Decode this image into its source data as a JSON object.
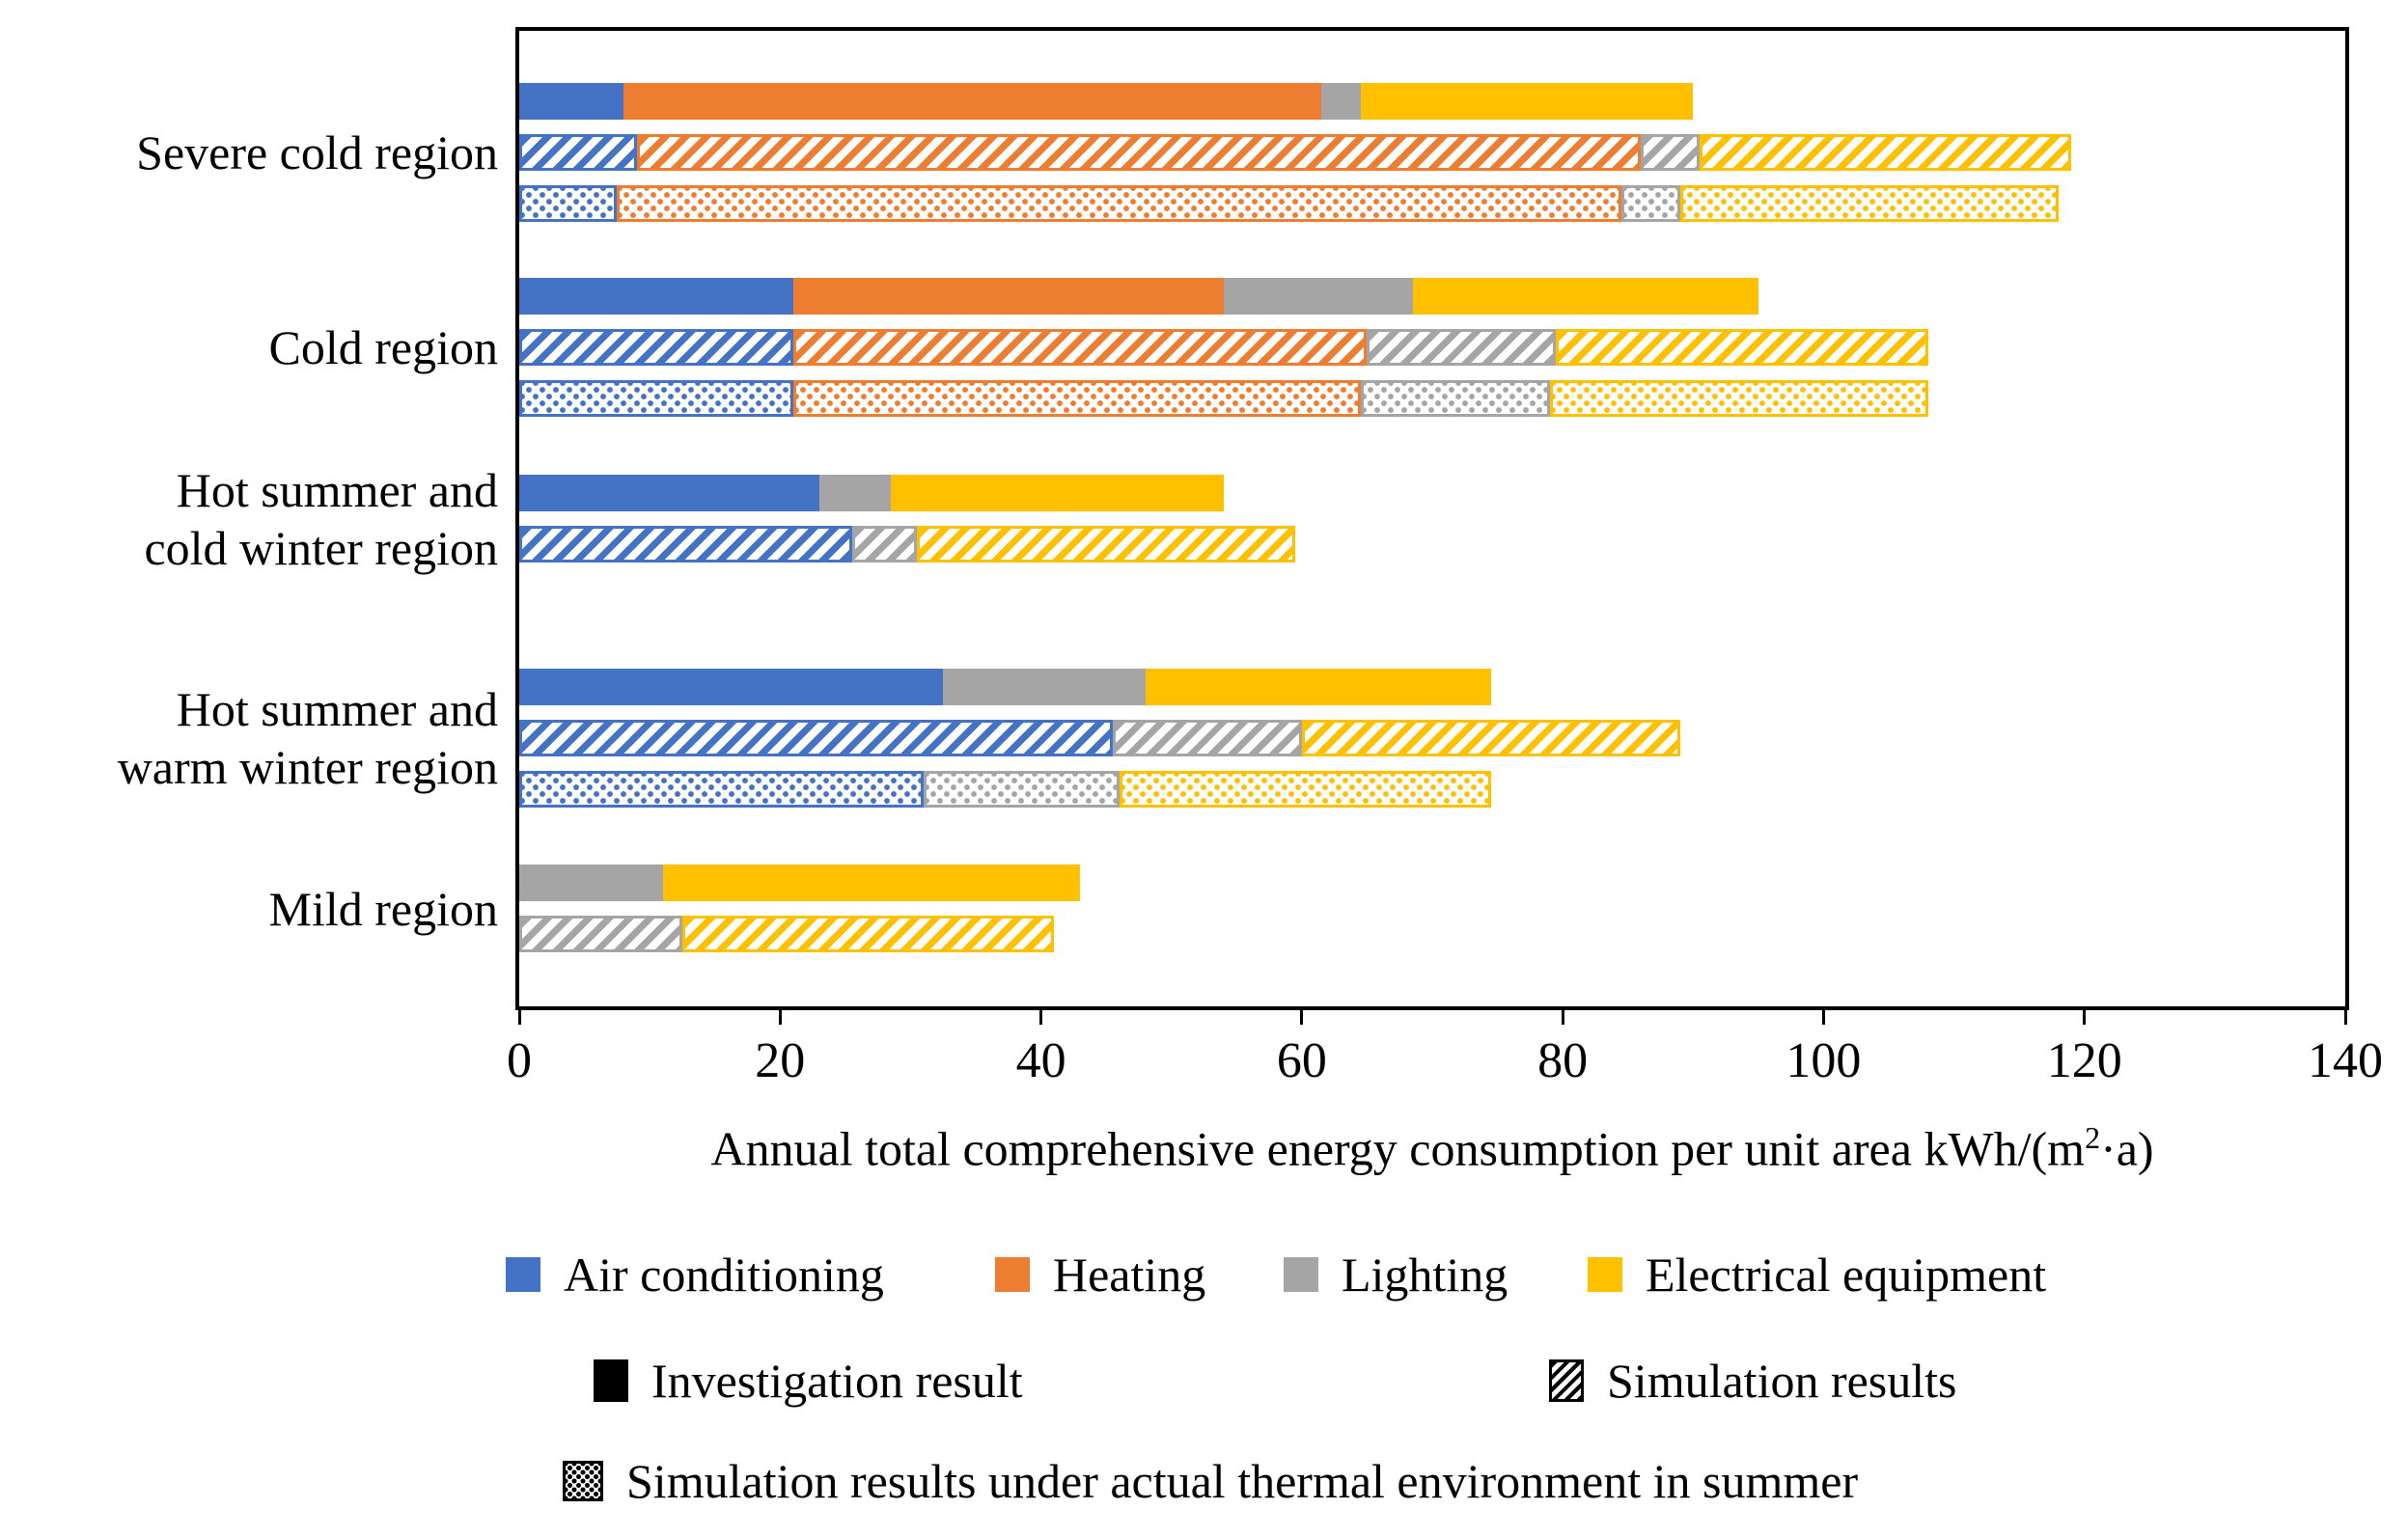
{
  "chart_data": {
    "type": "bar",
    "orientation": "horizontal",
    "stacked": true,
    "title": "",
    "xlabel": {
      "pre": "Annual total comprehensive energy consumption per unit area kWh/(m",
      "sup": "2",
      "post": "·a)"
    },
    "xlim": [
      0,
      140
    ],
    "xticks": [
      0,
      20,
      40,
      60,
      80,
      100,
      120,
      140
    ],
    "grid": false,
    "components": [
      {
        "name": "Air conditioning",
        "color": "#4472C4"
      },
      {
        "name": "Heating",
        "color": "#ED7D31"
      },
      {
        "name": "Lighting",
        "color": "#A5A5A5"
      },
      {
        "name": "Electrical equipment",
        "color": "#FFC000"
      }
    ],
    "series": [
      {
        "name": "Investigation result",
        "pattern": "solid"
      },
      {
        "name": "Simulation results",
        "pattern": "hatch"
      },
      {
        "name": "Simulation results under actual thermal environment in summer",
        "pattern": "dots"
      }
    ],
    "groups": [
      {
        "category": "Severe cold region",
        "label_lines": [
          "Severe cold region"
        ],
        "bars": [
          {
            "series": "Investigation result",
            "values": [
              8,
              53.5,
              3,
              25.5
            ],
            "total": 90
          },
          {
            "series": "Simulation results",
            "values": [
              9,
              77,
              4.5,
              28.5
            ],
            "total": 119
          },
          {
            "series": "Simulation results under actual thermal environment in summer",
            "values": [
              7.5,
              77,
              4.5,
              29
            ],
            "total": 118
          }
        ]
      },
      {
        "category": "Cold region",
        "label_lines": [
          "Cold region"
        ],
        "bars": [
          {
            "series": "Investigation result",
            "values": [
              21,
              33,
              14.5,
              26.5
            ],
            "total": 95
          },
          {
            "series": "Simulation results",
            "values": [
              21,
              44,
              14.5,
              28.5
            ],
            "total": 108
          },
          {
            "series": "Simulation results under actual thermal environment in summer",
            "values": [
              21,
              43.5,
              14.5,
              29
            ],
            "total": 108
          }
        ]
      },
      {
        "category": "Hot summer and cold winter region",
        "label_lines": [
          "Hot summer and",
          "cold winter region"
        ],
        "bars": [
          {
            "series": "Investigation result",
            "values": [
              23,
              0,
              5.5,
              25.5
            ],
            "total": 54
          },
          {
            "series": "Simulation results",
            "values": [
              25.5,
              0,
              5,
              29
            ],
            "total": 59.5
          }
        ]
      },
      {
        "category": "Hot summer and warm winter region",
        "label_lines": [
          "Hot summer and",
          "warm winter region"
        ],
        "bars": [
          {
            "series": "Investigation result",
            "values": [
              32.5,
              0,
              15.5,
              26.5
            ],
            "total": 74.5
          },
          {
            "series": "Simulation results",
            "values": [
              45.5,
              0,
              14.5,
              29
            ],
            "total": 89
          },
          {
            "series": "Simulation results under actual thermal environment in summer",
            "values": [
              31,
              0,
              15,
              28.5
            ],
            "total": 74.5
          }
        ]
      },
      {
        "category": "Mild region",
        "label_lines": [
          "Mild region"
        ],
        "bars": [
          {
            "series": "Investigation result",
            "values": [
              0,
              0,
              11,
              32
            ],
            "total": 43
          },
          {
            "series": "Simulation results",
            "values": [
              0,
              0,
              12.5,
              28.5
            ],
            "total": 41
          }
        ]
      }
    ]
  },
  "legend": {
    "components": [
      {
        "label": "Air conditioning",
        "color": "#4472C4"
      },
      {
        "label": "Heating",
        "color": "#ED7D31"
      },
      {
        "label": "Lighting",
        "color": "#A5A5A5"
      },
      {
        "label": "Electrical equipment",
        "color": "#FFC000"
      }
    ],
    "series": [
      {
        "label": "Investigation result",
        "pattern": "solid",
        "color": "#000000"
      },
      {
        "label": "Simulation results",
        "pattern": "hatch",
        "color": "#000000"
      },
      {
        "label": "Simulation results under actual thermal environment in summer",
        "pattern": "dots",
        "color": "#000000"
      }
    ]
  },
  "colors": {
    "air_conditioning": "#4472C4",
    "heating": "#ED7D31",
    "lighting": "#A5A5A5",
    "electrical_equipment": "#FFC000",
    "axis": "#000000",
    "background": "#FFFFFF"
  }
}
